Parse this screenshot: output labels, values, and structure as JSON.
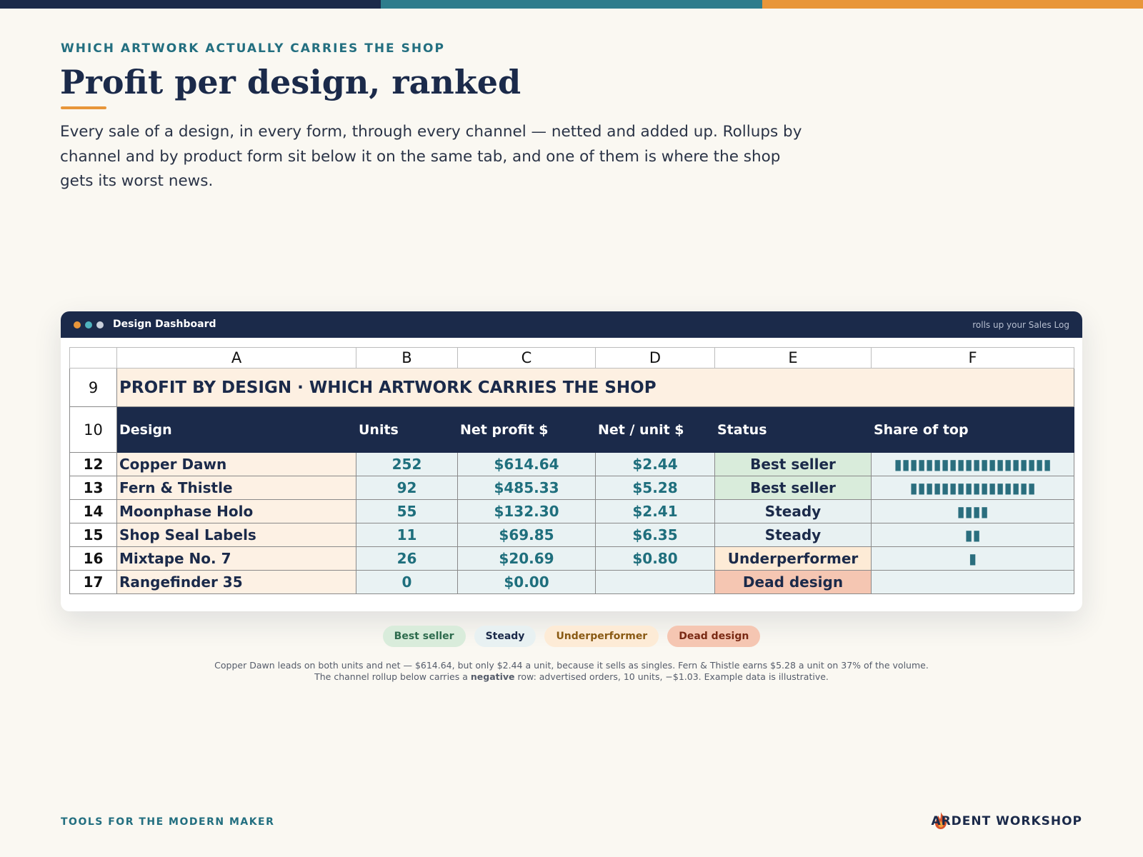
{
  "eyebrow": "WHICH ARTWORK ACTUALLY CARRIES THE SHOP",
  "title": "Profit per design, ranked",
  "description": "Every sale of a design, in every form, through every channel — netted and added up. Rollups by channel and by product form sit below it on the same tab, and one of them is where the shop gets its worst news.",
  "window": {
    "title": "Design Dashboard",
    "subtitle": "rolls up your Sales Log"
  },
  "sheet": {
    "column_letters": [
      "A",
      "B",
      "C",
      "D",
      "E",
      "F"
    ],
    "section": {
      "row_number": "9",
      "title": "PROFIT BY DESIGN · WHICH ARTWORK CARRIES THE SHOP"
    },
    "header": {
      "row_number": "10",
      "cells": [
        "Design",
        "Units",
        "Net profit $",
        "Net / unit $",
        "Status",
        "Share of top"
      ]
    },
    "rows": [
      {
        "row_number": "12",
        "cells": [
          "Copper Dawn",
          "252",
          "$614.64",
          "$2.44",
          "Best seller",
          "▮▮▮▮▮▮▮▮▮▮▮▮▮▮▮▮▮▮▮▮"
        ]
      },
      {
        "row_number": "13",
        "cells": [
          "Fern & Thistle",
          "92",
          "$485.33",
          "$5.28",
          "Best seller",
          "▮▮▮▮▮▮▮▮▮▮▮▮▮▮▮▮"
        ]
      },
      {
        "row_number": "14",
        "cells": [
          "Moonphase Holo",
          "55",
          "$132.30",
          "$2.41",
          "Steady",
          "▮▮▮▮"
        ]
      },
      {
        "row_number": "15",
        "cells": [
          "Shop Seal Labels",
          "11",
          "$69.85",
          "$6.35",
          "Steady",
          "▮▮"
        ]
      },
      {
        "row_number": "16",
        "cells": [
          "Mixtape No. 7",
          "26",
          "$20.69",
          "$0.80",
          "Underperformer",
          "▮"
        ]
      },
      {
        "row_number": "17",
        "cells": [
          "Rangefinder 35",
          "0",
          "$0.00",
          null,
          "Dead design",
          null
        ]
      }
    ]
  },
  "legend": [
    {
      "label": "Best seller",
      "background": "#d9ecdb",
      "color": "#2d6b4d"
    },
    {
      "label": "Steady",
      "background": "#e8f1f2",
      "color": "#1b2a4a"
    },
    {
      "label": "Underperformer",
      "background": "#fdebd6",
      "color": "#8a5a14"
    },
    {
      "label": "Dead design",
      "background": "#f5c6b2",
      "color": "#7a2a14"
    }
  ],
  "footnote": {
    "before": "Copper Dawn leads on both units and net — $614.64, but only $2.44 a unit, because it sells as singles. Fern & Thistle earns $5.28 a unit on 37% of the volume. The channel rollup below carries a",
    "bold": "negative",
    "after": "row: advertised orders, 10 units, −$1.03. Example data is illustrative."
  },
  "footer": {
    "left": "TOOLS FOR THE MODERN MAKER",
    "brand": "ARDENT WORKSHOP"
  }
}
